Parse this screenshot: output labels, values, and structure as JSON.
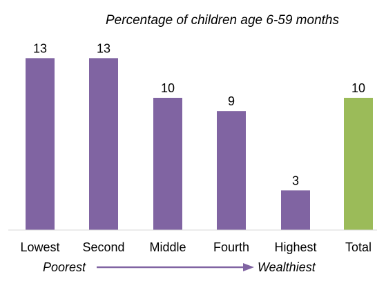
{
  "chart_data": {
    "type": "bar",
    "subtitle": "Percentage of children age 6-59 months",
    "categories": [
      "Lowest",
      "Second",
      "Middle",
      "Fourth",
      "Highest",
      "Total"
    ],
    "values": [
      13,
      13,
      10,
      9,
      3,
      10
    ],
    "value_labels": [
      "13",
      "13",
      "10",
      "9",
      "3",
      "10"
    ],
    "colors": [
      "#8064A2",
      "#8064A2",
      "#8064A2",
      "#8064A2",
      "#8064A2",
      "#9BBB59"
    ],
    "ylim": [
      0,
      16
    ],
    "grid": false,
    "wealth_axis": {
      "left_label": "Poorest",
      "right_label": "Wealthiest",
      "arrow_color": "#8064A2"
    }
  }
}
